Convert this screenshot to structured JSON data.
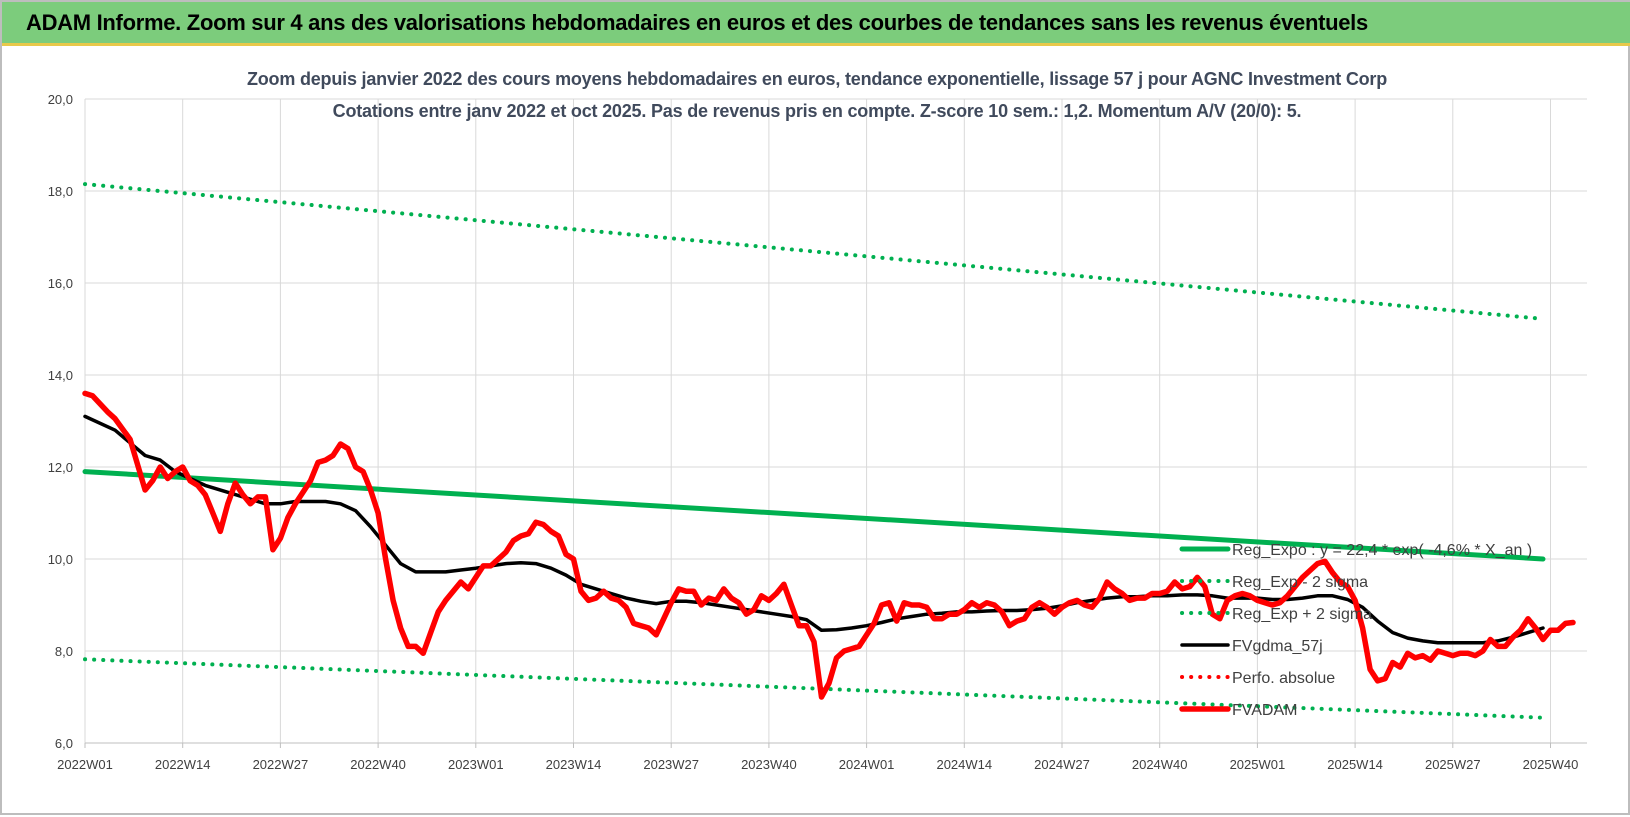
{
  "header": {
    "title": "ADAM Informe. Zoom sur 4 ans des valorisations hebdomadaires en euros et des courbes de tendances sans les revenus éventuels"
  },
  "chart_data": {
    "type": "line",
    "title_line1": "Zoom depuis janvier 2022 des cours moyens hebdomadaires en euros, tendance exponentielle, lissage 57 j pour AGNC Investment Corp",
    "title_line2": "Cotations entre janv 2022 et oct 2025. Pas de revenus pris en compte. Z-score 10 sem.: 1,2. Momentum A/V (20/0): 5.",
    "ylim": [
      6,
      20
    ],
    "ytick_values": [
      6,
      8,
      10,
      12,
      14,
      16,
      18,
      20
    ],
    "ytick_labels": [
      "6,0",
      "8,0",
      "10,0",
      "12,0",
      "14,0",
      "16,0",
      "18,0",
      "20,0"
    ],
    "x_categories": [
      "2022W01",
      "2022W14",
      "2022W27",
      "2022W40",
      "2023W01",
      "2023W14",
      "2023W27",
      "2023W40",
      "2024W01",
      "2024W14",
      "2024W27",
      "2024W40",
      "2025W01",
      "2025W14",
      "2025W27",
      "2025W40"
    ],
    "grid": true,
    "legend_position": "right",
    "series": [
      {
        "name": "Reg_Expo : y = 22,4 * exp( -4,6% * X_an )",
        "color": "#00b050",
        "style": "solid",
        "points": [
          [
            0,
            11.9
          ],
          [
            194,
            10.0
          ]
        ]
      },
      {
        "name": "Reg_Exp - 2 sigma",
        "color": "#00b050",
        "style": "dotted",
        "points": [
          [
            0,
            7.82
          ],
          [
            194,
            6.55
          ]
        ]
      },
      {
        "name": "Reg_Exp + 2 sigma",
        "color": "#00b050",
        "style": "dotted",
        "points": [
          [
            0,
            18.15
          ],
          [
            194,
            15.22
          ]
        ]
      },
      {
        "name": "FVgdma_57j",
        "color": "#000000",
        "style": "solid",
        "points": [
          [
            0,
            13.1
          ],
          [
            4,
            12.8
          ],
          [
            8,
            12.25
          ],
          [
            10,
            12.15
          ],
          [
            12,
            11.9
          ],
          [
            16,
            11.6
          ],
          [
            20,
            11.4
          ],
          [
            22,
            11.3
          ],
          [
            24,
            11.2
          ],
          [
            26,
            11.2
          ],
          [
            28,
            11.25
          ],
          [
            30,
            11.25
          ],
          [
            32,
            11.25
          ],
          [
            34,
            11.2
          ],
          [
            36,
            11.05
          ],
          [
            38,
            10.7
          ],
          [
            40,
            10.3
          ],
          [
            42,
            9.9
          ],
          [
            44,
            9.72
          ],
          [
            46,
            9.72
          ],
          [
            48,
            9.72
          ],
          [
            50,
            9.76
          ],
          [
            52,
            9.8
          ],
          [
            54,
            9.85
          ],
          [
            56,
            9.9
          ],
          [
            58,
            9.92
          ],
          [
            60,
            9.9
          ],
          [
            62,
            9.8
          ],
          [
            64,
            9.65
          ],
          [
            66,
            9.45
          ],
          [
            68,
            9.35
          ],
          [
            70,
            9.25
          ],
          [
            72,
            9.15
          ],
          [
            74,
            9.08
          ],
          [
            76,
            9.03
          ],
          [
            78,
            9.08
          ],
          [
            80,
            9.08
          ],
          [
            82,
            9.05
          ],
          [
            84,
            9.0
          ],
          [
            86,
            8.95
          ],
          [
            88,
            8.9
          ],
          [
            90,
            8.85
          ],
          [
            92,
            8.8
          ],
          [
            94,
            8.75
          ],
          [
            96,
            8.68
          ],
          [
            98,
            8.45
          ],
          [
            100,
            8.46
          ],
          [
            102,
            8.5
          ],
          [
            104,
            8.55
          ],
          [
            106,
            8.62
          ],
          [
            108,
            8.7
          ],
          [
            110,
            8.75
          ],
          [
            112,
            8.8
          ],
          [
            114,
            8.82
          ],
          [
            116,
            8.85
          ],
          [
            118,
            8.85
          ],
          [
            120,
            8.87
          ],
          [
            122,
            8.88
          ],
          [
            124,
            8.88
          ],
          [
            126,
            8.9
          ],
          [
            128,
            8.93
          ],
          [
            130,
            8.98
          ],
          [
            132,
            9.05
          ],
          [
            134,
            9.1
          ],
          [
            136,
            9.15
          ],
          [
            138,
            9.18
          ],
          [
            140,
            9.18
          ],
          [
            142,
            9.2
          ],
          [
            144,
            9.2
          ],
          [
            146,
            9.22
          ],
          [
            148,
            9.22
          ],
          [
            150,
            9.2
          ],
          [
            152,
            9.15
          ],
          [
            154,
            9.15
          ],
          [
            156,
            9.15
          ],
          [
            158,
            9.12
          ],
          [
            160,
            9.12
          ],
          [
            162,
            9.15
          ],
          [
            164,
            9.2
          ],
          [
            166,
            9.2
          ],
          [
            168,
            9.12
          ],
          [
            170,
            8.95
          ],
          [
            172,
            8.65
          ],
          [
            174,
            8.4
          ],
          [
            176,
            8.28
          ],
          [
            178,
            8.22
          ],
          [
            180,
            8.18
          ],
          [
            182,
            8.18
          ],
          [
            184,
            8.18
          ],
          [
            186,
            8.18
          ],
          [
            188,
            8.22
          ],
          [
            190,
            8.3
          ],
          [
            192,
            8.4
          ],
          [
            194,
            8.5
          ]
        ]
      },
      {
        "name": "Perfo. absolue",
        "color": "#ff0000",
        "style": "dotted",
        "points": []
      },
      {
        "name": "FVADAM",
        "color": "#ff0000",
        "style": "solid-thick",
        "points": [
          [
            0,
            13.6
          ],
          [
            1,
            13.55
          ],
          [
            3,
            13.2
          ],
          [
            4,
            13.05
          ],
          [
            6,
            12.6
          ],
          [
            8,
            11.5
          ],
          [
            9,
            11.7
          ],
          [
            10,
            12.0
          ],
          [
            11,
            11.75
          ],
          [
            12,
            11.9
          ],
          [
            13,
            12.0
          ],
          [
            14,
            11.7
          ],
          [
            15,
            11.6
          ],
          [
            16,
            11.4
          ],
          [
            17,
            11.0
          ],
          [
            18,
            10.6
          ],
          [
            19,
            11.2
          ],
          [
            20,
            11.65
          ],
          [
            21,
            11.4
          ],
          [
            22,
            11.2
          ],
          [
            23,
            11.35
          ],
          [
            24,
            11.35
          ],
          [
            25,
            10.2
          ],
          [
            26,
            10.45
          ],
          [
            27,
            10.9
          ],
          [
            28,
            11.2
          ],
          [
            30,
            11.7
          ],
          [
            31,
            12.1
          ],
          [
            32,
            12.15
          ],
          [
            33,
            12.25
          ],
          [
            34,
            12.5
          ],
          [
            35,
            12.4
          ],
          [
            36,
            12.0
          ],
          [
            37,
            11.9
          ],
          [
            38,
            11.5
          ],
          [
            39,
            11.0
          ],
          [
            40,
            10.0
          ],
          [
            41,
            9.1
          ],
          [
            42,
            8.5
          ],
          [
            43,
            8.1
          ],
          [
            44,
            8.1
          ],
          [
            45,
            7.95
          ],
          [
            46,
            8.4
          ],
          [
            47,
            8.85
          ],
          [
            48,
            9.1
          ],
          [
            50,
            9.5
          ],
          [
            51,
            9.35
          ],
          [
            52,
            9.6
          ],
          [
            53,
            9.85
          ],
          [
            54,
            9.85
          ],
          [
            56,
            10.15
          ],
          [
            57,
            10.4
          ],
          [
            58,
            10.5
          ],
          [
            59,
            10.55
          ],
          [
            60,
            10.8
          ],
          [
            61,
            10.75
          ],
          [
            62,
            10.6
          ],
          [
            63,
            10.5
          ],
          [
            64,
            10.1
          ],
          [
            65,
            10.0
          ],
          [
            66,
            9.3
          ],
          [
            67,
            9.1
          ],
          [
            68,
            9.15
          ],
          [
            69,
            9.3
          ],
          [
            70,
            9.15
          ],
          [
            71,
            9.1
          ],
          [
            72,
            8.95
          ],
          [
            73,
            8.6
          ],
          [
            74,
            8.55
          ],
          [
            75,
            8.5
          ],
          [
            76,
            8.35
          ],
          [
            77,
            8.7
          ],
          [
            78,
            9.05
          ],
          [
            79,
            9.35
          ],
          [
            80,
            9.3
          ],
          [
            81,
            9.3
          ],
          [
            82,
            9.0
          ],
          [
            83,
            9.15
          ],
          [
            84,
            9.1
          ],
          [
            85,
            9.35
          ],
          [
            86,
            9.15
          ],
          [
            87,
            9.05
          ],
          [
            88,
            8.8
          ],
          [
            89,
            8.9
          ],
          [
            90,
            9.2
          ],
          [
            91,
            9.1
          ],
          [
            92,
            9.25
          ],
          [
            93,
            9.45
          ],
          [
            94,
            9.0
          ],
          [
            95,
            8.55
          ],
          [
            96,
            8.55
          ],
          [
            97,
            8.2
          ],
          [
            98,
            7.0
          ],
          [
            99,
            7.3
          ],
          [
            100,
            7.85
          ],
          [
            101,
            8.0
          ],
          [
            102,
            8.05
          ],
          [
            103,
            8.1
          ],
          [
            104,
            8.35
          ],
          [
            105,
            8.6
          ],
          [
            106,
            9.0
          ],
          [
            107,
            9.05
          ],
          [
            108,
            8.65
          ],
          [
            109,
            9.05
          ],
          [
            110,
            9.0
          ],
          [
            111,
            9.0
          ],
          [
            112,
            8.95
          ],
          [
            113,
            8.7
          ],
          [
            114,
            8.7
          ],
          [
            115,
            8.8
          ],
          [
            116,
            8.8
          ],
          [
            117,
            8.9
          ],
          [
            118,
            9.05
          ],
          [
            119,
            8.95
          ],
          [
            120,
            9.05
          ],
          [
            121,
            9.0
          ],
          [
            122,
            8.85
          ],
          [
            123,
            8.55
          ],
          [
            124,
            8.65
          ],
          [
            125,
            8.7
          ],
          [
            126,
            8.95
          ],
          [
            127,
            9.05
          ],
          [
            128,
            8.95
          ],
          [
            129,
            8.8
          ],
          [
            130,
            8.95
          ],
          [
            131,
            9.05
          ],
          [
            132,
            9.1
          ],
          [
            133,
            9.0
          ],
          [
            134,
            8.95
          ],
          [
            135,
            9.15
          ],
          [
            136,
            9.5
          ],
          [
            137,
            9.35
          ],
          [
            138,
            9.25
          ],
          [
            139,
            9.1
          ],
          [
            140,
            9.15
          ],
          [
            141,
            9.15
          ],
          [
            142,
            9.25
          ],
          [
            143,
            9.25
          ],
          [
            144,
            9.3
          ],
          [
            145,
            9.5
          ],
          [
            146,
            9.35
          ],
          [
            147,
            9.4
          ],
          [
            148,
            9.6
          ],
          [
            149,
            9.4
          ],
          [
            150,
            8.8
          ],
          [
            151,
            8.7
          ],
          [
            152,
            9.1
          ],
          [
            153,
            9.2
          ],
          [
            154,
            9.25
          ],
          [
            155,
            9.2
          ],
          [
            156,
            9.1
          ],
          [
            157,
            9.05
          ],
          [
            158,
            9.0
          ],
          [
            159,
            9.05
          ],
          [
            160,
            9.2
          ],
          [
            161,
            9.4
          ],
          [
            162,
            9.6
          ],
          [
            163,
            9.75
          ],
          [
            164,
            9.9
          ],
          [
            165,
            9.95
          ],
          [
            166,
            9.7
          ],
          [
            167,
            9.5
          ],
          [
            168,
            9.4
          ],
          [
            169,
            9.1
          ],
          [
            170,
            8.5
          ],
          [
            171,
            7.6
          ],
          [
            172,
            7.35
          ],
          [
            173,
            7.4
          ],
          [
            174,
            7.75
          ],
          [
            175,
            7.65
          ],
          [
            176,
            7.95
          ],
          [
            177,
            7.85
          ],
          [
            178,
            7.9
          ],
          [
            179,
            7.8
          ],
          [
            180,
            8.0
          ],
          [
            181,
            7.95
          ],
          [
            182,
            7.9
          ],
          [
            183,
            7.95
          ],
          [
            184,
            7.95
          ],
          [
            185,
            7.9
          ],
          [
            186,
            8.0
          ],
          [
            187,
            8.25
          ],
          [
            188,
            8.1
          ],
          [
            189,
            8.1
          ],
          [
            190,
            8.3
          ],
          [
            191,
            8.45
          ],
          [
            192,
            8.7
          ],
          [
            193,
            8.5
          ],
          [
            194,
            8.25
          ],
          [
            195,
            8.45
          ],
          [
            196,
            8.45
          ],
          [
            197,
            8.6
          ],
          [
            198,
            8.62
          ]
        ]
      }
    ]
  }
}
